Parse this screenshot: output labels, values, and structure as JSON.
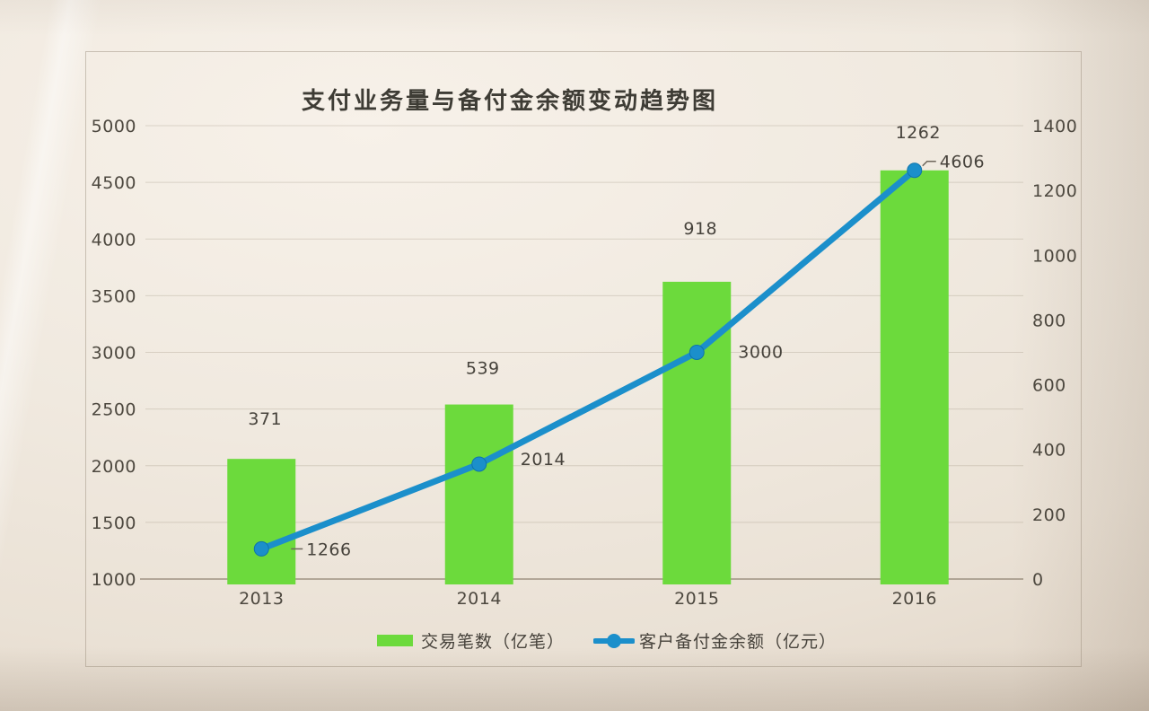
{
  "colors": {
    "paper": "#efe7df",
    "text": "#4b473f"
  },
  "chart_data": {
    "type": "combo-bar-line",
    "title": "支付业务量与备付金余额变动趋势图",
    "categories": [
      "2013",
      "2014",
      "2015",
      "2016"
    ],
    "series": [
      {
        "name": "交易笔数（亿笔）",
        "type": "bar",
        "axis": "right",
        "color": "#6cda3c",
        "values": [
          371,
          539,
          918,
          1262
        ],
        "data_labels": [
          "371",
          "539",
          "918",
          "1262"
        ]
      },
      {
        "name": "客户备付金余额（亿元）",
        "type": "line",
        "axis": "left",
        "color": "#1b8fcb",
        "marker_edge_color": "#0e74ab",
        "values": [
          1266,
          2014,
          3000,
          4606
        ],
        "data_labels": [
          "1266",
          "2014",
          "3000",
          "4606"
        ]
      }
    ],
    "left_axis": {
      "min": 1000,
      "max": 5000,
      "step": 500,
      "ticks": [
        "5000",
        "4500",
        "4000",
        "3500",
        "3000",
        "2500",
        "2000",
        "1500",
        "1000"
      ]
    },
    "right_axis": {
      "min": 0,
      "max": 1400,
      "step": 200,
      "ticks": [
        "1400",
        "1200",
        "1000",
        "800",
        "600",
        "400",
        "200",
        "0"
      ]
    },
    "grid": true,
    "legend_position": "bottom"
  }
}
